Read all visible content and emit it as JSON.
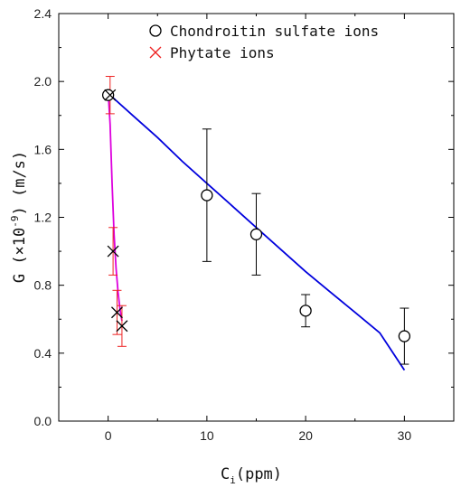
{
  "chart_data": {
    "type": "scatter",
    "xlabel": {
      "main": "C",
      "sub": "i",
      "rest": "(ppm)"
    },
    "ylabel": {
      "pre": "G (×10",
      "sup": "-9",
      "post": ") (m/s)"
    },
    "xlim": [
      -5,
      35
    ],
    "ylim": [
      0.0,
      2.4
    ],
    "xticks": [
      0,
      10,
      20,
      30
    ],
    "xtick_labels": [
      "0",
      "10",
      "20",
      "30"
    ],
    "yticks": [
      0.0,
      0.4,
      0.8,
      1.2,
      1.6,
      2.0,
      2.4
    ],
    "ytick_labels": [
      "0.0",
      "0.4",
      "0.8",
      "1.2",
      "1.6",
      "2.0",
      "2.4"
    ],
    "legend_position": "top-right",
    "series": [
      {
        "name": "Chondroitin sulfate ions",
        "marker": "circle",
        "marker_color": "#000000",
        "errorbar_color": "#000000",
        "fit_color": "#0000dd",
        "points": [
          {
            "x": 0,
            "y": 1.92,
            "err": 0.0
          },
          {
            "x": 10,
            "y": 1.33,
            "err": 0.39
          },
          {
            "x": 15,
            "y": 1.1,
            "err": 0.24
          },
          {
            "x": 20,
            "y": 0.65,
            "err": 0.095
          },
          {
            "x": 30,
            "y": 0.5,
            "err": 0.165
          }
        ],
        "fit": [
          {
            "x": 0.0,
            "y": 1.93
          },
          {
            "x": 2.5,
            "y": 1.8
          },
          {
            "x": 5.0,
            "y": 1.67
          },
          {
            "x": 7.5,
            "y": 1.53
          },
          {
            "x": 10.0,
            "y": 1.4
          },
          {
            "x": 12.5,
            "y": 1.27
          },
          {
            "x": 15.0,
            "y": 1.14
          },
          {
            "x": 17.5,
            "y": 1.01
          },
          {
            "x": 20.0,
            "y": 0.88
          },
          {
            "x": 22.5,
            "y": 0.76
          },
          {
            "x": 25.0,
            "y": 0.64
          },
          {
            "x": 27.5,
            "y": 0.52
          },
          {
            "x": 30.0,
            "y": 0.3
          }
        ]
      },
      {
        "name": "Phytate ions",
        "marker": "x",
        "marker_color": "#000000",
        "legend_marker_color": "#ee2222",
        "errorbar_color": "#ee2222",
        "fit_color": "#dd00dd",
        "points": [
          {
            "x": 0.2,
            "y": 1.92,
            "err": 0.11
          },
          {
            "x": 0.5,
            "y": 1.0,
            "err": 0.14
          },
          {
            "x": 0.9,
            "y": 0.64,
            "err": 0.13
          },
          {
            "x": 1.4,
            "y": 0.56,
            "err": 0.12
          }
        ],
        "fit": [
          {
            "x": 0.0,
            "y": 1.94
          },
          {
            "x": 0.2,
            "y": 1.75
          },
          {
            "x": 0.4,
            "y": 1.4
          },
          {
            "x": 0.6,
            "y": 1.1
          },
          {
            "x": 0.8,
            "y": 0.9
          },
          {
            "x": 1.0,
            "y": 0.76
          },
          {
            "x": 1.2,
            "y": 0.66
          },
          {
            "x": 1.4,
            "y": 0.59
          }
        ]
      }
    ]
  }
}
